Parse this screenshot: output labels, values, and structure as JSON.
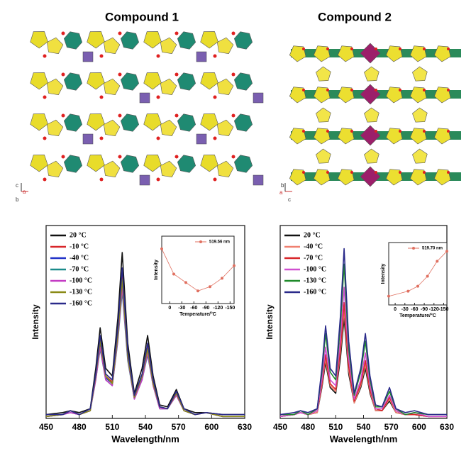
{
  "structure_titles": [
    "Compound 1",
    "Compound 2"
  ],
  "structure_axes": [
    [
      "c",
      "a",
      "b"
    ],
    [
      "b",
      "a",
      "c"
    ]
  ],
  "chart_data": [
    {
      "type": "line",
      "xlabel": "Wavelength/nm",
      "ylabel": "Intensity",
      "x": [
        450,
        465,
        472,
        480,
        490,
        495,
        499,
        504,
        510,
        515,
        519,
        524,
        530,
        537,
        542,
        547,
        553,
        560,
        568,
        575,
        585,
        595,
        610,
        630
      ],
      "xlim": [
        450,
        630
      ],
      "xticks": [
        450,
        480,
        510,
        540,
        570,
        600,
        630
      ],
      "ylim": [
        0,
        100
      ],
      "series": [
        {
          "name": "20 °C",
          "color": "#111111",
          "values": [
            2,
            3,
            4,
            3,
            5,
            26,
            47,
            26,
            22,
            52,
            86,
            39,
            13,
            26,
            43,
            22,
            7,
            6,
            15,
            5,
            3,
            3,
            2,
            2
          ]
        },
        {
          "name": "-10 °C",
          "color": "#d8262a",
          "values": [
            1,
            2,
            4,
            2,
            4,
            22,
            41,
            22,
            19,
            44,
            74,
            33,
            11,
            22,
            37,
            19,
            6,
            5,
            13,
            4,
            2,
            3,
            1,
            1
          ]
        },
        {
          "name": "-40 °C",
          "color": "#2233c8",
          "values": [
            1,
            2,
            4,
            2,
            4,
            21,
            39,
            21,
            18,
            42,
            70,
            32,
            11,
            21,
            35,
            18,
            6,
            5,
            13,
            4,
            2,
            3,
            1,
            1
          ]
        },
        {
          "name": "-70 °C",
          "color": "#1a8a8a",
          "values": [
            1,
            2,
            3,
            2,
            4,
            20,
            36,
            20,
            17,
            40,
            66,
            30,
            10,
            20,
            33,
            17,
            5,
            5,
            12,
            4,
            2,
            3,
            1,
            1
          ]
        },
        {
          "name": "-100 °C",
          "color": "#c43cc4",
          "values": [
            1,
            2,
            3,
            2,
            4,
            20,
            37,
            20,
            17,
            41,
            68,
            31,
            10,
            20,
            34,
            17,
            5,
            5,
            12,
            4,
            2,
            3,
            1,
            1
          ]
        },
        {
          "name": "-130 °C",
          "color": "#8a8a16",
          "values": [
            1,
            2,
            4,
            2,
            4,
            22,
            40,
            22,
            18,
            43,
            72,
            32,
            11,
            22,
            36,
            18,
            6,
            5,
            13,
            4,
            2,
            3,
            1,
            1
          ]
        },
        {
          "name": "-160 °C",
          "color": "#2a2a8a",
          "values": [
            2,
            2,
            4,
            2,
            5,
            23,
            43,
            23,
            20,
            47,
            78,
            35,
            12,
            23,
            39,
            20,
            6,
            5,
            14,
            5,
            2,
            3,
            2,
            2
          ]
        }
      ]
    },
    {
      "type": "line",
      "markers": true,
      "xlabel": "Temperature/°C",
      "ylabel": "Intensity",
      "x": [
        20,
        -10,
        -40,
        -70,
        -100,
        -130,
        -160
      ],
      "xlim": [
        20,
        -160
      ],
      "xticks": [
        0,
        -30,
        -60,
        -90,
        -120,
        -150
      ],
      "ylim": [
        60,
        92
      ],
      "series": [
        {
          "name": "519.56 nm",
          "color": "#e07060",
          "values": [
            86,
            74,
            70,
            66,
            68,
            72,
            78
          ]
        }
      ]
    },
    {
      "type": "line",
      "xlabel": "Wavelength/nm",
      "ylabel": "Intensity",
      "x": [
        450,
        465,
        472,
        480,
        490,
        495,
        499,
        504,
        510,
        515,
        519,
        524,
        530,
        537,
        542,
        547,
        553,
        560,
        568,
        575,
        585,
        595,
        610,
        630
      ],
      "xlim": [
        450,
        630
      ],
      "xticks": [
        450,
        480,
        510,
        540,
        570,
        600,
        630
      ],
      "ylim": [
        0,
        100
      ],
      "series": [
        {
          "name": "20 °C",
          "color": "#111111",
          "values": [
            1,
            2,
            3,
            2,
            3,
            16,
            29,
            16,
            13,
            31,
            52,
            23,
            8,
            16,
            26,
            13,
            4,
            4,
            9,
            3,
            2,
            2,
            1,
            1
          ]
        },
        {
          "name": "-40 °C",
          "color": "#f08070",
          "values": [
            1,
            2,
            3,
            2,
            3,
            17,
            31,
            17,
            14,
            34,
            56,
            25,
            8,
            17,
            28,
            14,
            4,
            4,
            10,
            3,
            2,
            2,
            1,
            1
          ]
        },
        {
          "name": "-70 °C",
          "color": "#d8262a",
          "values": [
            1,
            2,
            3,
            2,
            4,
            18,
            33,
            18,
            15,
            36,
            60,
            27,
            9,
            18,
            30,
            15,
            5,
            4,
            11,
            4,
            2,
            2,
            1,
            1
          ]
        },
        {
          "name": "-100 °C",
          "color": "#d050d0",
          "values": [
            1,
            2,
            3,
            2,
            4,
            20,
            37,
            20,
            17,
            41,
            68,
            31,
            10,
            20,
            34,
            17,
            5,
            5,
            12,
            4,
            2,
            3,
            1,
            1
          ]
        },
        {
          "name": "-130 °C",
          "color": "#1f8a2a",
          "values": [
            2,
            2,
            4,
            2,
            5,
            24,
            44,
            24,
            20,
            48,
            80,
            36,
            12,
            24,
            40,
            20,
            6,
            6,
            14,
            5,
            2,
            3,
            2,
            2
          ]
        },
        {
          "name": "-160 °C",
          "color": "#2a2a8a",
          "values": [
            2,
            3,
            4,
            3,
            5,
            26,
            48,
            26,
            22,
            53,
            88,
            40,
            13,
            26,
            44,
            22,
            7,
            6,
            16,
            5,
            3,
            4,
            2,
            2
          ]
        }
      ]
    },
    {
      "type": "line",
      "markers": true,
      "xlabel": "Temperature/°C",
      "ylabel": "Intensity",
      "x": [
        20,
        -40,
        -70,
        -100,
        -130,
        -160
      ],
      "xlim": [
        20,
        -160
      ],
      "xticks": [
        0,
        -30,
        -60,
        -90,
        -120,
        -150
      ],
      "ylim": [
        45,
        95
      ],
      "series": [
        {
          "name": "519.70 nm",
          "color": "#e07060",
          "values": [
            52,
            56,
            60,
            68,
            80,
            88
          ]
        }
      ]
    }
  ]
}
